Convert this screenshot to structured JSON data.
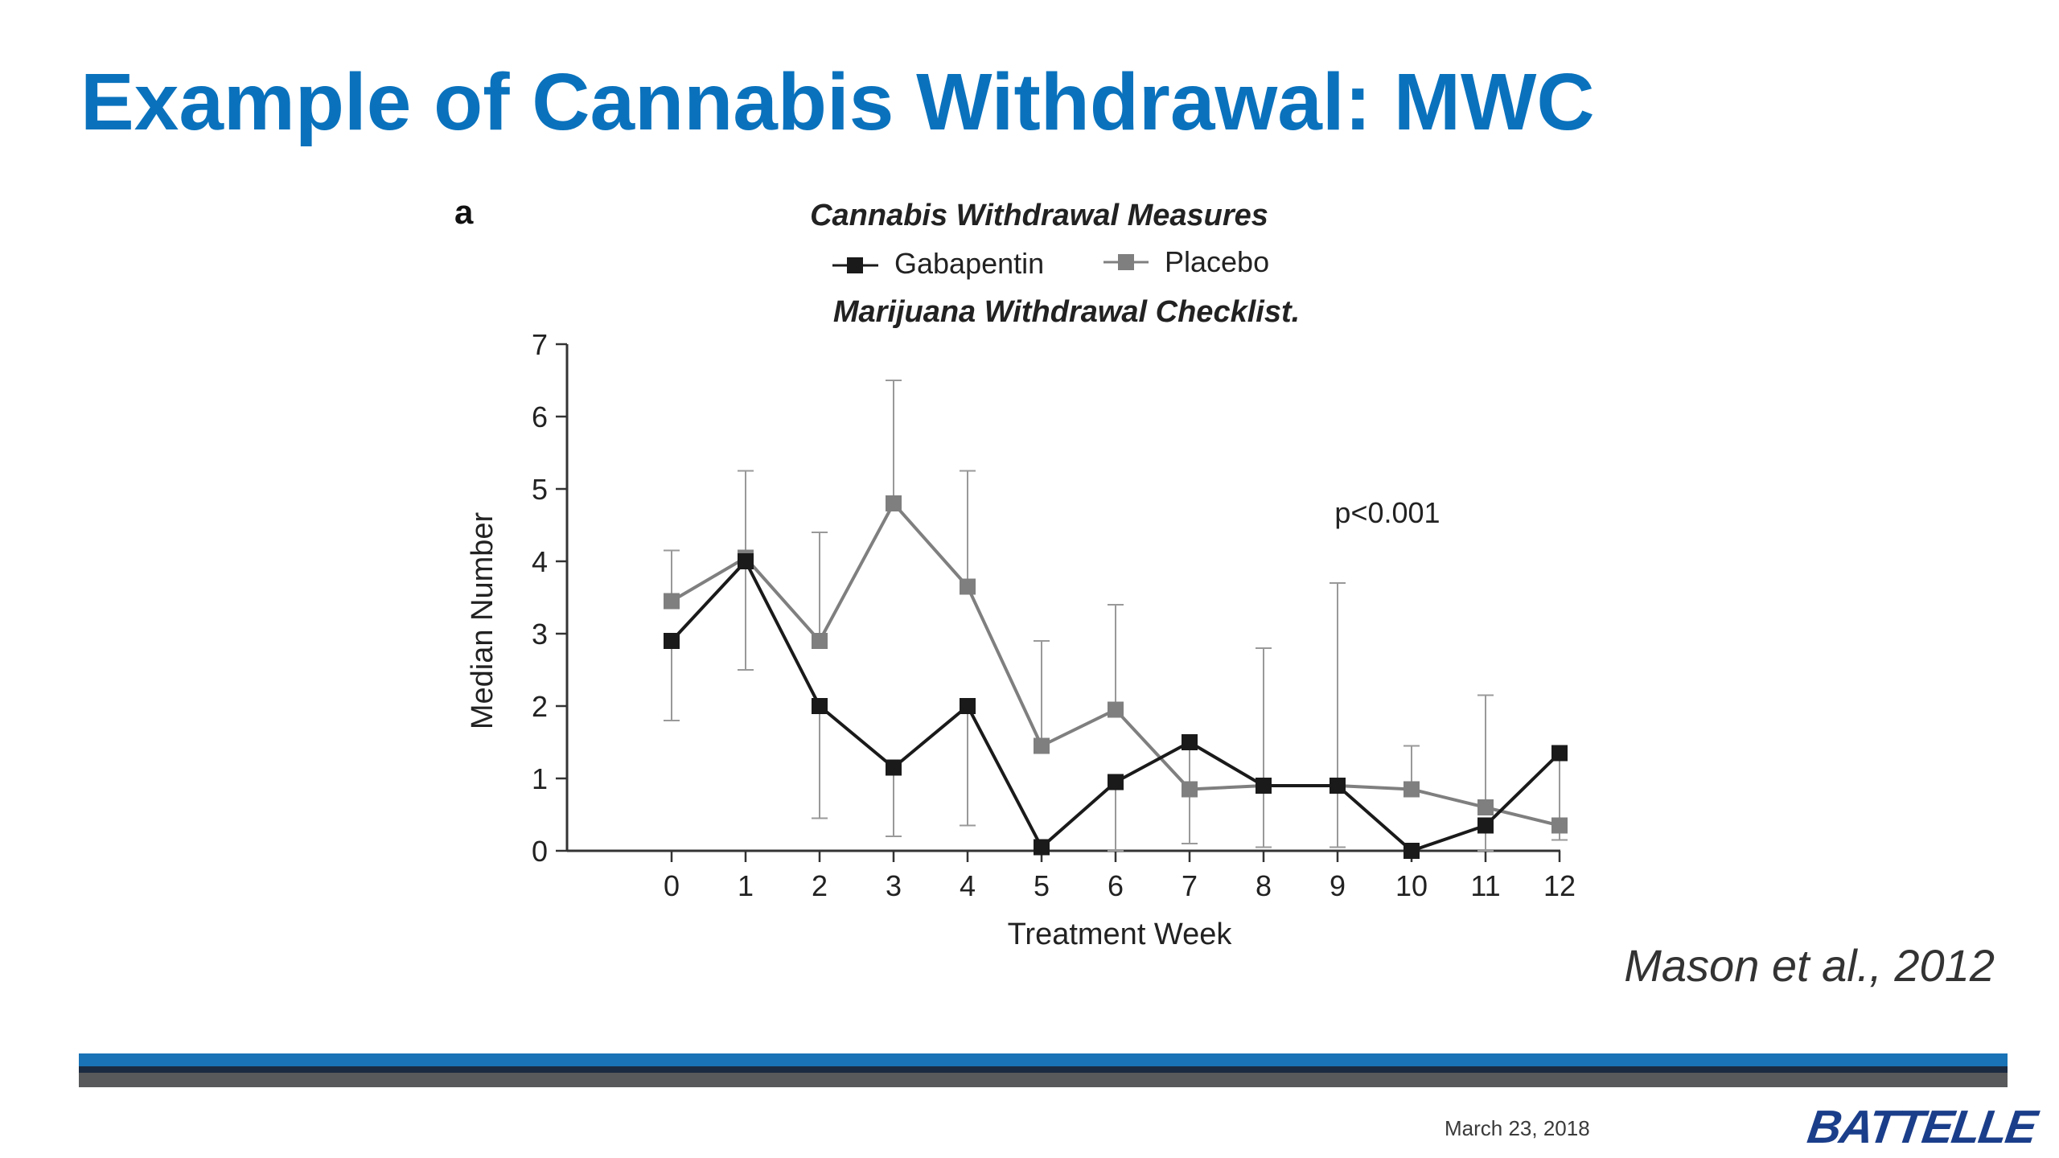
{
  "slide": {
    "title": "Example of Cannabis Withdrawal: MWC",
    "citation": "Mason et al., 2012",
    "date": "March 23, 2018",
    "logo_text": "BATTELLE"
  },
  "colors": {
    "title": "#0a72bd",
    "gabapentin": "#1a1a1a",
    "placebo": "#7f7f7f",
    "band_blue": "#1a73b6",
    "band_gray": "#58595b",
    "logo": "#1b3e8a"
  },
  "chart_data": {
    "type": "line",
    "panel_label": "a",
    "title": "Cannabis Withdrawal Measures",
    "subtitle": "Marijuana Withdrawal Checklist.",
    "annotation": "p<0.001",
    "xlabel": "Treatment Week",
    "ylabel": "Median Number",
    "x": [
      0,
      1,
      2,
      3,
      4,
      5,
      6,
      7,
      8,
      9,
      10,
      11,
      12
    ],
    "xlim": [
      -1.5,
      12
    ],
    "ylim": [
      0,
      7
    ],
    "yticks": [
      0,
      1,
      2,
      3,
      4,
      5,
      6,
      7
    ],
    "legend_position": "top",
    "series": [
      {
        "name": "Gabapentin",
        "color": "#1a1a1a",
        "values": [
          2.9,
          4.0,
          2.0,
          1.15,
          2.0,
          0.05,
          0.95,
          1.5,
          0.9,
          0.9,
          0.0,
          0.35,
          1.35
        ],
        "error_low": [
          1.8,
          2.5,
          0.45,
          0.2,
          0.35,
          0.05,
          0.0,
          0.1,
          0.05,
          0.05,
          0.0,
          0.0,
          0.15
        ],
        "error_high": [
          2.9,
          4.0,
          2.0,
          1.15,
          2.0,
          0.05,
          0.95,
          1.5,
          0.9,
          0.9,
          0.0,
          0.35,
          1.35
        ]
      },
      {
        "name": "Placebo",
        "color": "#7f7f7f",
        "values": [
          3.45,
          4.05,
          2.9,
          4.8,
          3.65,
          1.45,
          1.95,
          0.85,
          0.9,
          0.9,
          0.85,
          0.6,
          0.35
        ],
        "error_low": [
          3.45,
          4.05,
          2.9,
          4.8,
          3.65,
          1.45,
          1.95,
          0.85,
          0.9,
          0.9,
          0.85,
          0.6,
          0.35
        ],
        "error_high": [
          4.15,
          5.25,
          4.4,
          6.5,
          5.25,
          2.9,
          3.4,
          1.45,
          2.8,
          3.7,
          1.45,
          2.15,
          1.4
        ]
      }
    ]
  }
}
